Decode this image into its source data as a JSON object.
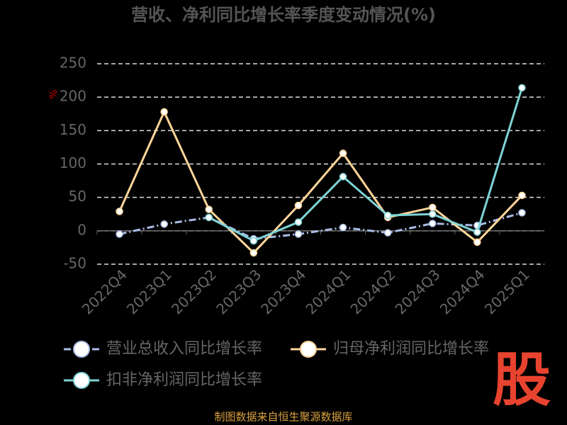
{
  "chart_data": {
    "type": "line",
    "title": "营收、净利同比增长率季度变动情况(%)",
    "y_label": "%",
    "categories": [
      "2022Q4",
      "2023Q1",
      "2023Q2",
      "2023Q3",
      "2023Q4",
      "2024Q1",
      "2024Q2",
      "2024Q3",
      "2024Q4",
      "2025Q1"
    ],
    "series": [
      {
        "name": "营业总收入同比增长率",
        "color": "#a9bce6",
        "dashed": true,
        "values": [
          -5,
          10,
          20,
          -12,
          -5,
          5,
          -3,
          11,
          8,
          27
        ]
      },
      {
        "name": "归母净利润同比增长率",
        "color": "#ffd59a",
        "dashed": false,
        "values": [
          29,
          178,
          32,
          -33,
          38,
          116,
          20,
          35,
          -17,
          53
        ]
      },
      {
        "name": "扣非净利润同比增长率",
        "color": "#7fd3d6",
        "dashed": false,
        "values": [
          null,
          null,
          20,
          -15,
          13,
          81,
          23,
          25,
          -2,
          214
        ]
      }
    ],
    "ylim": [
      -50,
      250
    ],
    "yticks": [
      -50,
      0,
      50,
      100,
      150,
      200,
      250
    ],
    "grid": true,
    "source": "制图数据来自恒生聚源数据库",
    "logo": "股"
  }
}
